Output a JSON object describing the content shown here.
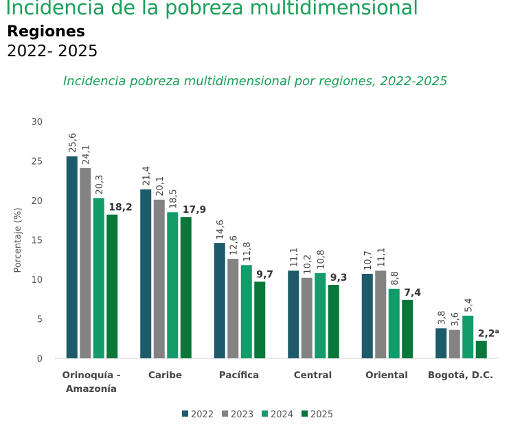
{
  "header": {
    "title": "Incidencia de la pobreza multidimensional",
    "subtitle": "Regiones",
    "period": "2022- 2025"
  },
  "chart_data": {
    "type": "bar",
    "title": "Incidencia pobreza multidimensional por regiones, 2022-2025",
    "ylabel": "Porcentaje (%)",
    "xlabel": "",
    "ylim": [
      0,
      30
    ],
    "yticks": [
      0,
      5,
      10,
      15,
      20,
      25,
      30
    ],
    "grid": false,
    "legend": "bottom",
    "categories": [
      "Orinoquía - Amazonía",
      "Caribe",
      "Pacífica",
      "Central",
      "Oriental",
      "Bogotá, D.C."
    ],
    "series": [
      {
        "name": "2022",
        "color": "#1d5b69",
        "values": [
          25.6,
          21.4,
          14.6,
          11.1,
          10.7,
          3.8
        ],
        "labels": [
          "25,6",
          "21,4",
          "14,6",
          "11,1",
          "10,7",
          "3,8"
        ]
      },
      {
        "name": "2023",
        "color": "#838383",
        "values": [
          24.1,
          20.1,
          12.6,
          10.2,
          11.1,
          3.6
        ],
        "labels": [
          "24,1",
          "20,1",
          "12,6",
          "10,2",
          "11,1",
          "3,6"
        ]
      },
      {
        "name": "2024",
        "color": "#129c6a",
        "values": [
          20.3,
          18.5,
          11.8,
          10.8,
          8.8,
          5.4
        ],
        "labels": [
          "20,3",
          "18,5",
          "11,8",
          "10,8",
          "8,8",
          "5,4"
        ]
      },
      {
        "name": "2025",
        "color": "#08773a",
        "values": [
          18.2,
          17.9,
          9.7,
          9.3,
          7.4,
          2.2
        ],
        "labels": [
          "18,2",
          "17,9",
          "9,7",
          "9,3",
          "7,4",
          "2,2"
        ]
      }
    ],
    "annotations": [
      {
        "category": "Bogotá, D.C.",
        "series": "2025",
        "text": "a"
      }
    ]
  }
}
